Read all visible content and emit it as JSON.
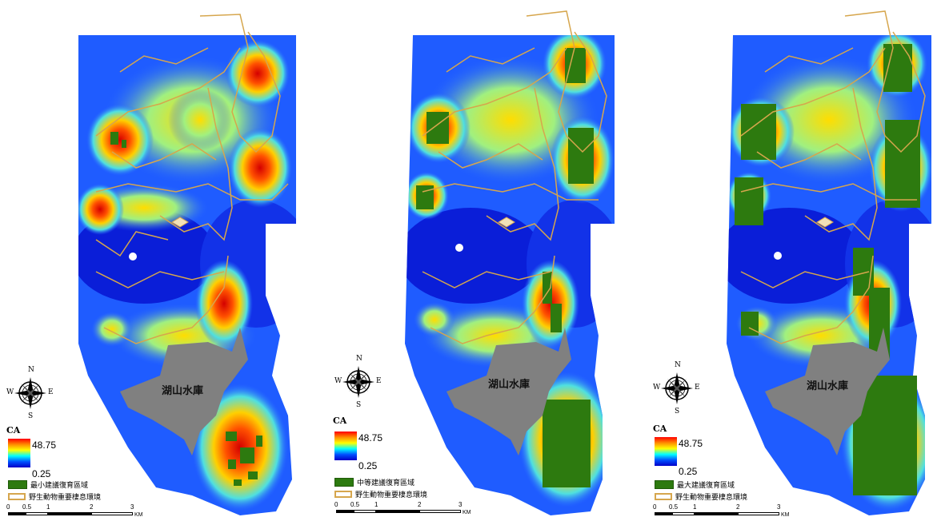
{
  "panels": [
    {
      "reservoir_label": "湖山水庫",
      "legend": {
        "title": "CA",
        "max": "48.75",
        "min": "0.25",
        "restoration_label": "最小建議復育區域",
        "habitat_label": "野生動物重要棲息環境"
      }
    },
    {
      "reservoir_label": "湖山水庫",
      "legend": {
        "title": "CA",
        "max": "48.75",
        "min": "0.25",
        "restoration_label": "中等建議復育區域",
        "habitat_label": "野生動物重要棲息環境"
      }
    },
    {
      "reservoir_label": "湖山水庫",
      "legend": {
        "title": "CA",
        "max": "48.75",
        "min": "0.25",
        "restoration_label": "最大建議復育區域",
        "habitat_label": "野生動物重要棲息環境"
      }
    }
  ],
  "compass": {
    "n": "N",
    "s": "S",
    "e": "E",
    "w": "W"
  },
  "scale_bar": {
    "ticks": [
      "0",
      "0.5",
      "1",
      "2",
      "3"
    ],
    "unit": "KM"
  },
  "colors": {
    "ramp_high": "#ff0000",
    "ramp_low": "#0000c8",
    "restoration_green": "#2d7a0f",
    "habitat_outline": "#d6a64d",
    "reservoir_gray": "#808080"
  },
  "icons": [
    "compass-rose-icon"
  ]
}
